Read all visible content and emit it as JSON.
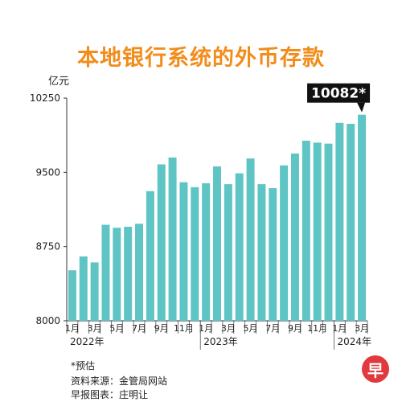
{
  "title": "本地银行系统的外币存款",
  "unit": "亿元",
  "colors": {
    "title": "#f28c1a",
    "bar": "#5fc4c4",
    "callout_bg": "#111111",
    "callout_text": "#ffffff"
  },
  "notes": {
    "estimate": "*预估",
    "source": "资料来源：金管局网站",
    "credit": "早报图表：庄明让"
  },
  "logo_text": "早",
  "chart_data": {
    "type": "bar",
    "title": "本地银行系统的外币存款",
    "ylabel": "亿元",
    "ylim": [
      8000,
      10250
    ],
    "yticks": [
      8000,
      8750,
      9500,
      10250
    ],
    "categories": [
      "2022-01",
      "2022-02",
      "2022-03",
      "2022-04",
      "2022-05",
      "2022-06",
      "2022-07",
      "2022-08",
      "2022-09",
      "2022-10",
      "2022-11",
      "2022-12",
      "2023-01",
      "2023-02",
      "2023-03",
      "2023-04",
      "2023-05",
      "2023-06",
      "2023-07",
      "2023-08",
      "2023-09",
      "2023-10",
      "2023-11",
      "2023-12",
      "2024-01",
      "2024-02",
      "2024-03"
    ],
    "values": [
      8510,
      8650,
      8590,
      8970,
      8940,
      8950,
      8980,
      9310,
      9580,
      9650,
      9400,
      9350,
      9390,
      9560,
      9380,
      9490,
      9640,
      9380,
      9340,
      9570,
      9690,
      9820,
      9800,
      9790,
      10000,
      9990,
      10082
    ],
    "month_labels": [
      "1月",
      "3月",
      "5月",
      "7月",
      "9月",
      "11月",
      "1月",
      "3月",
      "5月",
      "7月",
      "9月",
      "11月",
      "1月",
      "3月"
    ],
    "month_label_index": [
      0,
      2,
      4,
      6,
      8,
      10,
      12,
      14,
      16,
      18,
      20,
      22,
      24,
      26
    ],
    "year_labels": [
      {
        "label": "2022年",
        "start": 0,
        "end": 11
      },
      {
        "label": "2023年",
        "start": 12,
        "end": 23
      },
      {
        "label": "2024年",
        "start": 24,
        "end": 26
      }
    ],
    "annotation": {
      "index": 26,
      "text": "10082*"
    },
    "grid": false
  }
}
